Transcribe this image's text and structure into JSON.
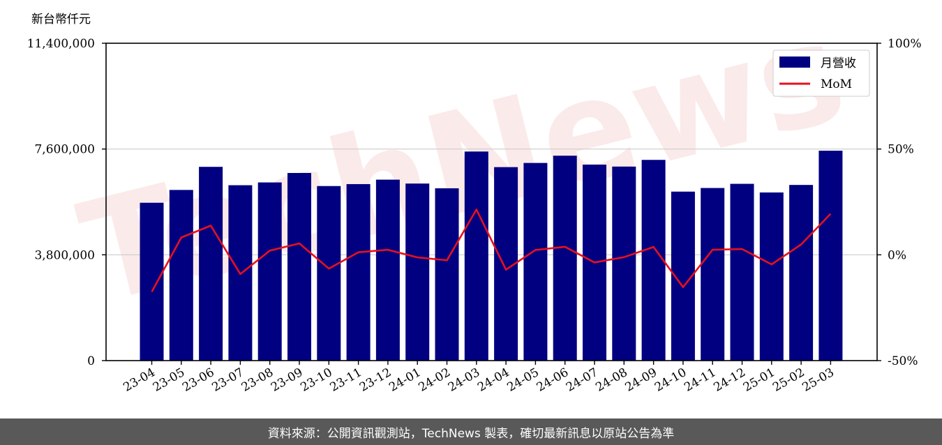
{
  "watermark": {
    "text": "TechNews"
  },
  "footer": {
    "text": "資料來源：公開資訊觀測站，TechNews 製表，確切最新訊息以原站公告為準"
  },
  "colors": {
    "bar": "#000080",
    "line": "#e8101c",
    "grid": "#cccccc",
    "watermark": "#e06b6b",
    "footer_bg": "#595959"
  },
  "chart_data": {
    "type": "bar",
    "y_unit_label": "新台幣仟元",
    "categories": [
      "23-04",
      "23-05",
      "23-06",
      "23-07",
      "23-08",
      "23-09",
      "23-10",
      "23-11",
      "23-12",
      "24-01",
      "24-02",
      "24-03",
      "24-04",
      "24-05",
      "24-06",
      "24-07",
      "24-08",
      "24-09",
      "24-10",
      "24-11",
      "24-12",
      "25-01",
      "25-02",
      "25-03"
    ],
    "series": [
      {
        "name": "月營收",
        "kind": "bar",
        "axis": "left",
        "values": [
          5670000,
          6130000,
          6960000,
          6300000,
          6400000,
          6740000,
          6270000,
          6340000,
          6500000,
          6360000,
          6190000,
          7510000,
          6950000,
          7100000,
          7360000,
          7040000,
          6970000,
          7210000,
          6070000,
          6200000,
          6350000,
          6040000,
          6310000,
          7540000
        ]
      },
      {
        "name": "MoM",
        "kind": "line",
        "axis": "right",
        "values": [
          -17.5,
          8.2,
          13.8,
          -9.1,
          2.0,
          5.4,
          -6.5,
          1.2,
          2.4,
          -1.2,
          -2.6,
          21.4,
          -7.0,
          2.3,
          3.8,
          -3.6,
          -1.1,
          3.7,
          -15.3,
          2.4,
          2.7,
          -4.5,
          4.9,
          19.4
        ]
      }
    ],
    "y_left": {
      "min": 0,
      "max": 11400000,
      "ticks": [
        0,
        3800000,
        7600000,
        11400000
      ],
      "tick_labels": [
        "0",
        "3,800,000",
        "7,600,000",
        "11,400,000"
      ]
    },
    "y_right": {
      "min": -50,
      "max": 100,
      "ticks": [
        -50,
        0,
        50,
        100
      ],
      "tick_labels": [
        "-50%",
        "0%",
        "50%",
        "100%"
      ]
    },
    "grid": true,
    "legend": {
      "position": "top-right",
      "entries": [
        "月營收",
        "MoM"
      ]
    }
  }
}
